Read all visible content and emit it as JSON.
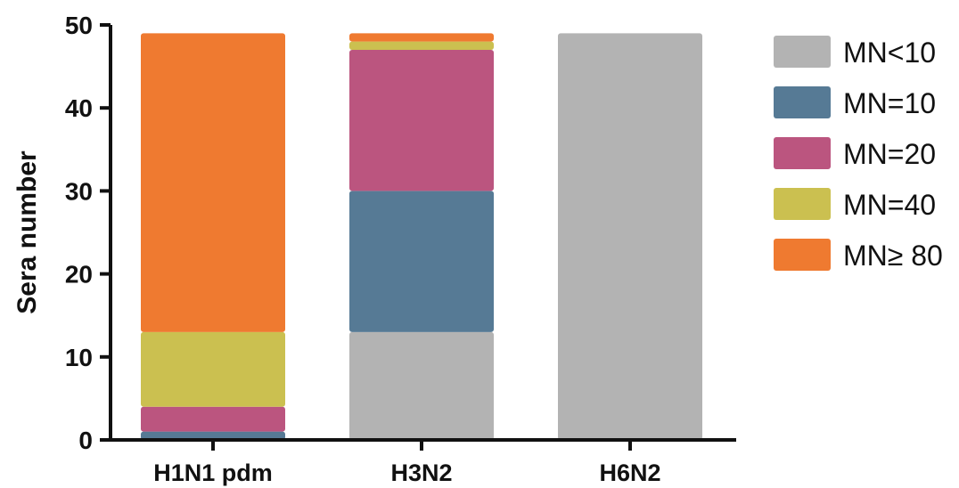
{
  "chart_data": {
    "type": "bar",
    "stacked": true,
    "title": "",
    "xlabel": "",
    "ylabel": "Sera number",
    "ylim": [
      0,
      50
    ],
    "yticks": [
      "0",
      "10",
      "20",
      "30",
      "40",
      "50"
    ],
    "grid": false,
    "legend_position": "right",
    "categories": [
      "H1N1 pdm",
      "H3N2",
      "H6N2"
    ],
    "series": [
      {
        "name": "MN<10",
        "color": "#b3b3b3",
        "values": [
          0,
          13,
          49
        ]
      },
      {
        "name": "MN=10",
        "color": "#567a95",
        "values": [
          1,
          17,
          0
        ]
      },
      {
        "name": "MN=20",
        "color": "#bb557f",
        "values": [
          3,
          17,
          0
        ]
      },
      {
        "name": "MN=40",
        "color": "#cbc050",
        "values": [
          9,
          1,
          0
        ]
      },
      {
        "name": "MN≥ 80",
        "color": "#ef7a30",
        "values": [
          36,
          1,
          0
        ]
      }
    ]
  }
}
